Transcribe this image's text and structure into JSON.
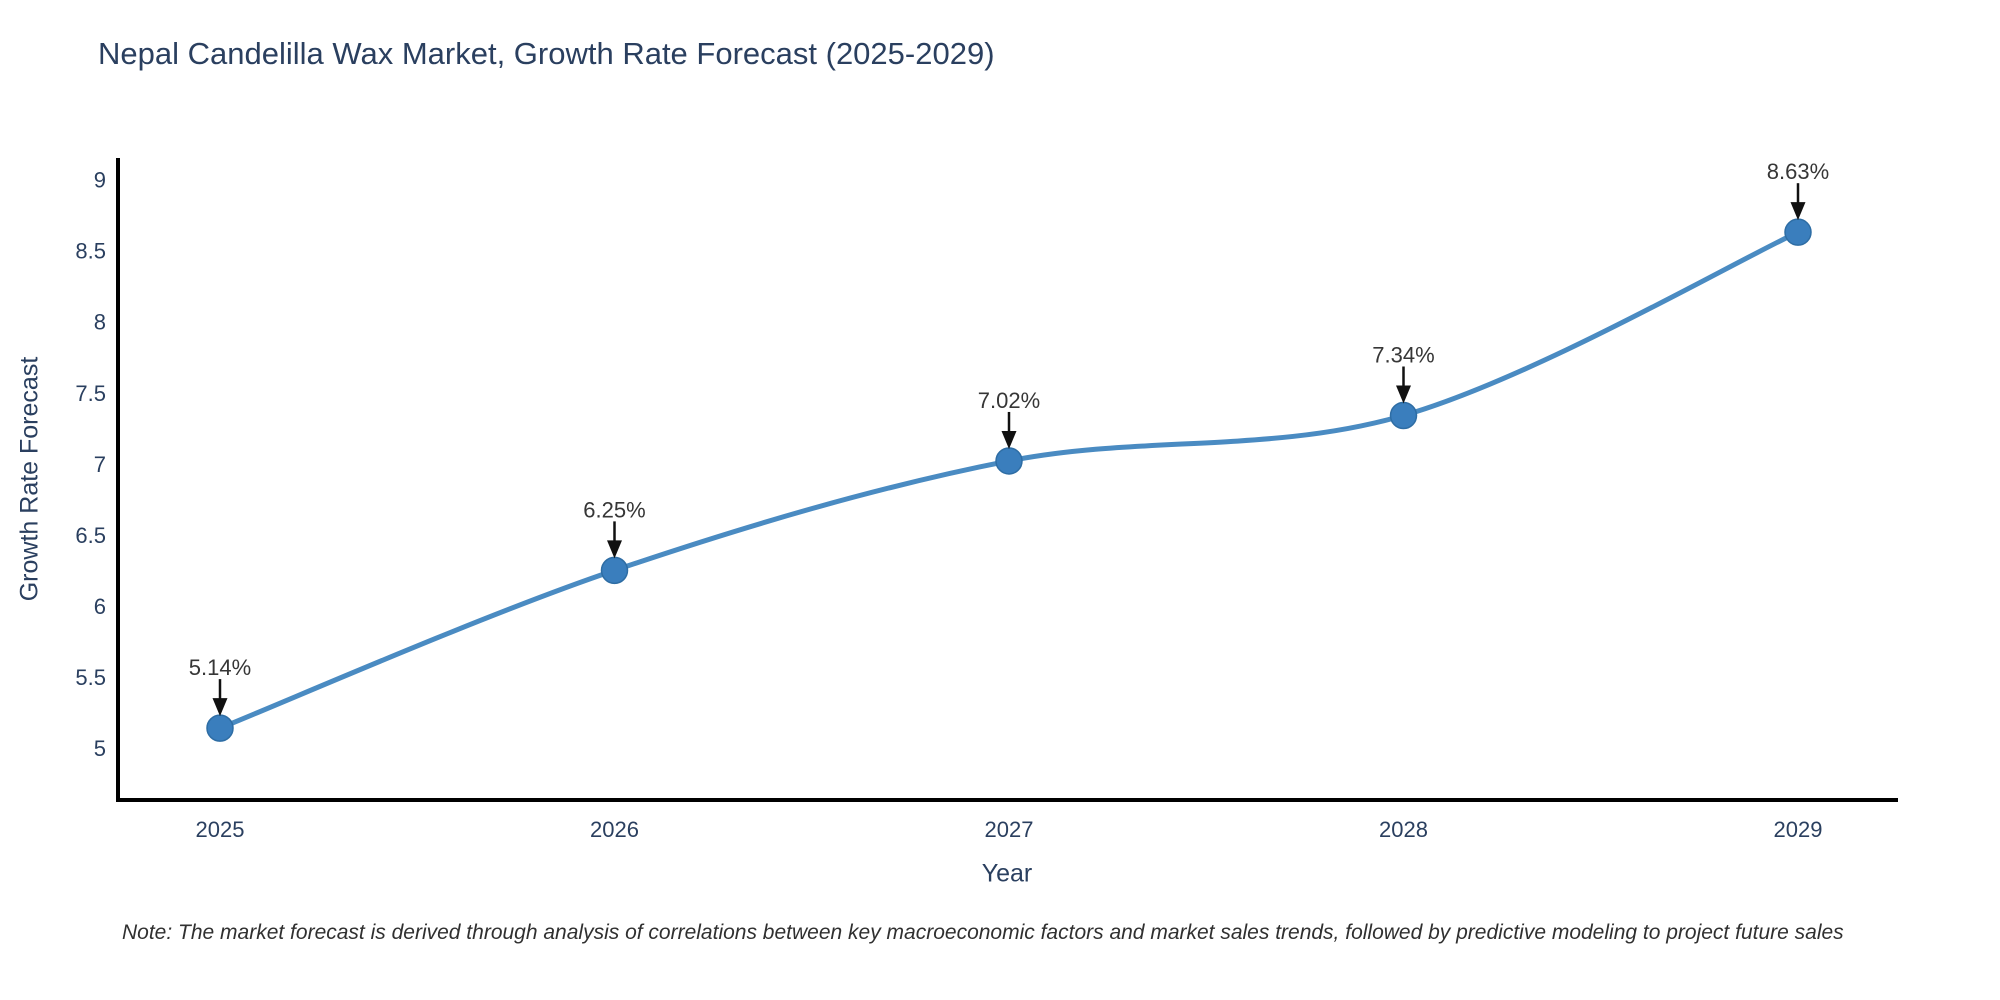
{
  "title": "Nepal Candelilla Wax Market, Growth Rate Forecast (2025-2029)",
  "note": "Note: The market forecast is derived through analysis of correlations between key macroeconomic factors and market sales trends, followed by predictive modeling to project future sales",
  "chart_data": {
    "type": "line",
    "title": "Nepal Candelilla Wax Market, Growth Rate Forecast (2025-2029)",
    "xlabel": "Year",
    "ylabel": "Growth Rate Forecast",
    "x": [
      2025,
      2026,
      2027,
      2028,
      2029
    ],
    "y": [
      5.14,
      6.25,
      7.02,
      7.34,
      8.63
    ],
    "point_labels": [
      "5.14%",
      "6.25%",
      "7.02%",
      "7.34%",
      "8.63%"
    ],
    "x_tick_labels": [
      "2025",
      "2026",
      "2027",
      "2028",
      "2029"
    ],
    "y_tick_labels": [
      "5",
      "5.5",
      "6",
      "6.5",
      "7",
      "7.5",
      "8",
      "8.5",
      "9"
    ],
    "ylim": [
      4.63,
      9.17
    ],
    "xlim": [
      2024.74,
      2029.25
    ],
    "grid": false,
    "legend_position": "none",
    "line_shape": "spline",
    "annotation_style": "black-down-arrow",
    "colors": {
      "line": "#4a8bc2",
      "marker": "#3a7ebd",
      "marker_edge": "#2e6da4",
      "annotation_text": "#363636",
      "annotation_arrow": "#111111",
      "axis_line": "#000000",
      "tick_text": "#2a3f5f",
      "title_text": "#2a3f5f",
      "background": "#ffffff"
    }
  }
}
